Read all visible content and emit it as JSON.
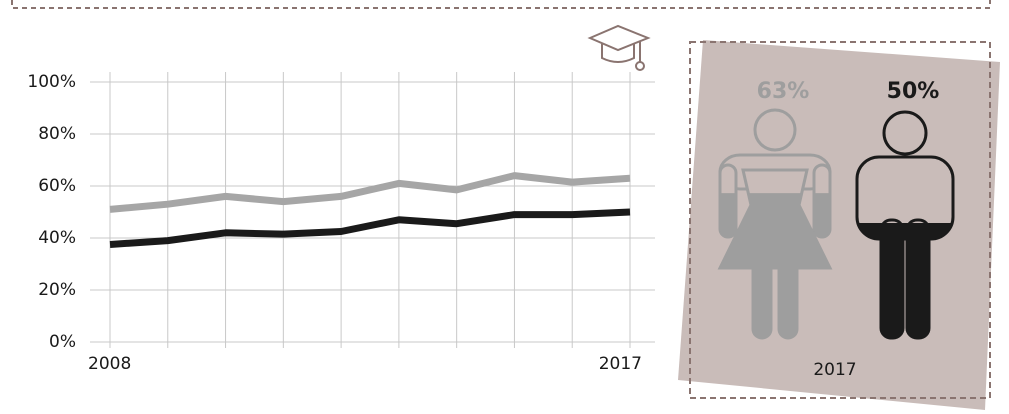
{
  "chart_data": [
    {
      "type": "line",
      "categories": [
        "2008",
        null,
        null,
        null,
        null,
        null,
        null,
        null,
        null,
        "2017"
      ],
      "series": [
        {
          "color": "#a6a6a6",
          "values": [
            51,
            53,
            56,
            54,
            56,
            61,
            58.5,
            64,
            61.5,
            63
          ]
        },
        {
          "color": "#1a1a1a",
          "values": [
            37.5,
            39,
            42,
            41.5,
            42.5,
            47,
            45.5,
            49,
            49,
            50
          ]
        }
      ],
      "ylim": [
        0,
        100
      ],
      "yticks": [
        {
          "value": 0,
          "label": "0%"
        },
        {
          "value": 20,
          "label": "20%"
        },
        {
          "value": 40,
          "label": "40%"
        },
        {
          "value": 60,
          "label": "60%"
        },
        {
          "value": 80,
          "label": "80%"
        },
        {
          "value": 100,
          "label": "100%"
        }
      ],
      "grid": true
    },
    {
      "type": "pictogram",
      "label": "2017",
      "values": [
        63,
        50
      ],
      "value_labels": [
        "63%",
        "50%"
      ],
      "colors": [
        "#9e9e9e",
        "#1a1a1a"
      ]
    }
  ]
}
